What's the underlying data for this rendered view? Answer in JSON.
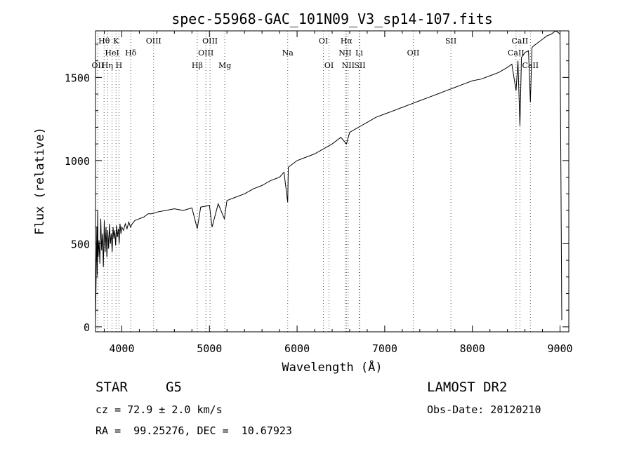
{
  "chart_data": {
    "type": "line",
    "title": "spec-55968-GAC_101N09_V3_sp14-107.fits",
    "xlabel": "Wavelength (Å)",
    "ylabel": "Flux (relative)",
    "xlim": [
      3700,
      9100
    ],
    "ylim": [
      -30,
      1780
    ],
    "xticks": [
      4000,
      5000,
      6000,
      7000,
      8000,
      9000
    ],
    "yticks": [
      0,
      500,
      1000,
      1500
    ],
    "grid": false,
    "line_color": "#000000",
    "series": [
      {
        "x": [
          3700,
          3715,
          3720,
          3725,
          3730,
          3740,
          3750,
          3760,
          3770,
          3780,
          3790,
          3800,
          3810,
          3820,
          3830,
          3840,
          3850,
          3860,
          3870,
          3880,
          3890,
          3900,
          3910,
          3920,
          3930,
          3940,
          3950,
          3960,
          3970,
          3980,
          3990,
          4000,
          4020,
          4040,
          4060,
          4080,
          4100,
          4120,
          4150,
          4200,
          4250,
          4300,
          4340,
          4400,
          4500,
          4600,
          4700,
          4800,
          4861,
          4900,
          5000,
          5030,
          5100,
          5170,
          5200,
          5300,
          5400,
          5500,
          5600,
          5700,
          5800,
          5850,
          5893,
          5900,
          5950,
          6000,
          6100,
          6200,
          6300,
          6400,
          6500,
          6563,
          6600,
          6700,
          6800,
          6900,
          7000,
          7100,
          7200,
          7300,
          7400,
          7500,
          7600,
          7700,
          7800,
          7900,
          8000,
          8100,
          8200,
          8300,
          8400,
          8450,
          8498,
          8520,
          8542,
          8560,
          8600,
          8640,
          8662,
          8680,
          8700,
          8750,
          8800,
          8850,
          8900,
          8950,
          8980,
          9000,
          9010,
          9020
        ],
        "y": [
          30,
          600,
          310,
          700,
          420,
          520,
          380,
          650,
          460,
          560,
          360,
          640,
          450,
          600,
          420,
          580,
          470,
          620,
          500,
          560,
          450,
          600,
          530,
          580,
          490,
          610,
          540,
          590,
          500,
          620,
          560,
          600,
          580,
          620,
          590,
          630,
          600,
          620,
          640,
          650,
          660,
          680,
          680,
          690,
          700,
          710,
          700,
          715,
          590,
          720,
          730,
          600,
          740,
          650,
          760,
          780,
          800,
          830,
          850,
          880,
          900,
          930,
          750,
          960,
          980,
          1000,
          1020,
          1040,
          1070,
          1100,
          1140,
          1100,
          1170,
          1200,
          1230,
          1260,
          1280,
          1300,
          1320,
          1340,
          1360,
          1380,
          1400,
          1420,
          1440,
          1460,
          1480,
          1490,
          1510,
          1530,
          1560,
          1580,
          1420,
          1600,
          1210,
          1620,
          1650,
          1660,
          1350,
          1680,
          1690,
          1710,
          1730,
          1750,
          1760,
          1780,
          1770,
          1760,
          900,
          40
        ]
      }
    ],
    "lines": [
      {
        "label": "Hθ",
        "x": 3798,
        "row": 1
      },
      {
        "label": "K",
        "x": 3934,
        "row": 1
      },
      {
        "label": "HeI",
        "x": 3889,
        "row": 2
      },
      {
        "label": "Hδ",
        "x": 4102,
        "row": 2
      },
      {
        "label": "OIII",
        "x": 4363,
        "row": 1
      },
      {
        "label": "OII",
        "x": 3727,
        "row": 3
      },
      {
        "label": "Hη",
        "x": 3835,
        "row": 3
      },
      {
        "label": "H",
        "x": 3968,
        "row": 3
      },
      {
        "label": "OIII",
        "x": 5007,
        "row": 1
      },
      {
        "label": "OIII",
        "x": 4959,
        "row": 2
      },
      {
        "label": "Hβ",
        "x": 4861,
        "row": 3
      },
      {
        "label": "Mg",
        "x": 5175,
        "row": 3
      },
      {
        "label": "Na",
        "x": 5893,
        "row": 2
      },
      {
        "label": "OI",
        "x": 6300,
        "row": 1
      },
      {
        "label": "OI",
        "x": 6364,
        "row": 3
      },
      {
        "label": "Hα",
        "x": 6563,
        "row": 1
      },
      {
        "label": "NII",
        "x": 6548,
        "row": 2
      },
      {
        "label": "Li",
        "x": 6708,
        "row": 2
      },
      {
        "label": "NII",
        "x": 6583,
        "row": 3
      },
      {
        "label": "SII",
        "x": 6716,
        "row": 3
      },
      {
        "label": "OII",
        "x": 7325,
        "row": 2
      },
      {
        "label": "SII",
        "x": 7755,
        "row": 1
      },
      {
        "label": "CaII",
        "x": 8542,
        "row": 1
      },
      {
        "label": "CaII",
        "x": 8498,
        "row": 2
      },
      {
        "label": "CaII",
        "x": 8662,
        "row": 3
      }
    ],
    "line_positions": [
      3727,
      3798,
      3835,
      3889,
      3934,
      3968,
      4102,
      4363,
      4861,
      4959,
      5007,
      5175,
      5893,
      6300,
      6364,
      6548,
      6563,
      6583,
      6708,
      6716,
      7325,
      7755,
      8498,
      8542,
      8662
    ]
  },
  "info": {
    "object_class": "STAR",
    "subclass": "G5",
    "survey": "LAMOST DR2",
    "redshift": "cz = 72.9 ± 2.0 km/s",
    "obs_date": "Obs-Date: 20120210",
    "coords": "RA =  99.25276, DEC =  10.67923"
  }
}
